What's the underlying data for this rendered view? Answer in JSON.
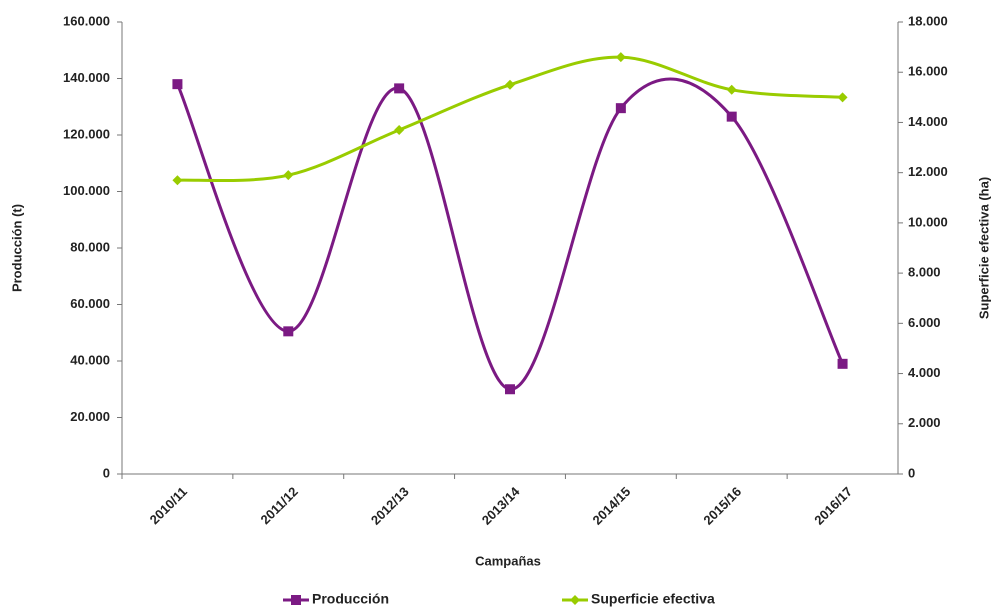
{
  "chart_data": {
    "type": "line",
    "x_label": "Campañas",
    "y_label": "Producción (t)",
    "y2_label": "Superficie efectiva (ha)",
    "categories": [
      "2010/11",
      "2011/12",
      "2012/13",
      "2013/14",
      "2014/15",
      "2015/16",
      "2016/17"
    ],
    "series": [
      {
        "name": "Producción",
        "color": "#7b1a83",
        "marker": "square",
        "values": [
          138000,
          50500,
          136500,
          30000,
          129500,
          126500,
          39000
        ]
      },
      {
        "name": "Superficie efectiva",
        "color": "#99cc00",
        "marker": "diamond",
        "axis": "y2",
        "values": [
          11700,
          11900,
          13700,
          15500,
          16600,
          15300,
          15000
        ]
      }
    ],
    "smooth": true,
    "ylim": [
      0,
      160000
    ],
    "yticks": [
      0,
      {
        "value": 20000,
        "label": "20.000"
      },
      {
        "value": 40000,
        "label": "40.000"
      },
      {
        "value": 60000,
        "label": "60.000"
      },
      {
        "value": 80000,
        "label": "80.000"
      },
      {
        "value": 100000,
        "label": "100.000"
      },
      {
        "value": 120000,
        "label": "120.000"
      },
      {
        "value": 140000,
        "label": "140.000"
      },
      {
        "value": 160000,
        "label": "160.000"
      }
    ],
    "y2lim": [
      0,
      18000
    ],
    "y2ticks": [
      0,
      {
        "value": 2000,
        "label": "2.000"
      },
      {
        "value": 4000,
        "label": "4.000"
      },
      {
        "value": 6000,
        "label": "6.000"
      },
      {
        "value": 8000,
        "label": "8.000"
      },
      {
        "value": 10000,
        "label": "10.000"
      },
      {
        "value": 12000,
        "label": "12.000"
      },
      {
        "value": 14000,
        "label": "14.000"
      },
      {
        "value": 16000,
        "label": "16.000"
      },
      {
        "value": 18000,
        "label": "18.000"
      }
    ],
    "grid": false,
    "legend": "bottom"
  }
}
